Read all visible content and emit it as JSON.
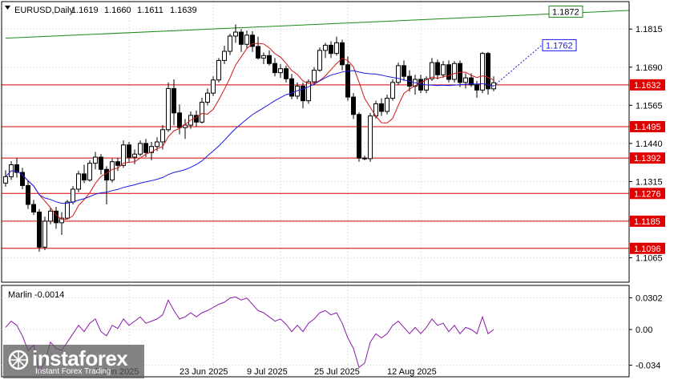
{
  "header": {
    "symbol": "EURUSD,Daily",
    "open": "1.1619",
    "high": "1.1660",
    "low": "1.1611",
    "close": "1.1639"
  },
  "chart_data": {
    "type": "candlestick",
    "price_axis_ticks": [
      1.1815,
      1.169,
      1.1565,
      1.144,
      1.1315,
      1.119,
      1.1065
    ],
    "price_axis_labels": [
      "1.1815",
      "1.1690",
      "1.1565",
      "1.1440",
      "1.1315",
      "1.1190",
      "1.1065"
    ],
    "ylim": [
      1.0985,
      1.1905
    ],
    "date_labels": [
      "5 Jun 2025",
      "23 Jun 2025",
      "9 Jul 2025",
      "25 Jul 2025",
      "12 Aug 2025"
    ],
    "date_label_index": [
      22,
      37,
      49,
      61,
      74
    ],
    "levels": [
      {
        "value": 1.1632,
        "label": "1.1632"
      },
      {
        "value": 1.1495,
        "label": "1.1495"
      },
      {
        "value": 1.1392,
        "label": "1.1392"
      },
      {
        "value": 1.1276,
        "label": "1.1276"
      },
      {
        "value": 1.1185,
        "label": "1.1185"
      },
      {
        "value": 1.1096,
        "label": "1.1096"
      }
    ],
    "green_trendline": {
      "label": "1.1872",
      "start": {
        "index": 0,
        "price": 1.1785
      },
      "end": {
        "index": 96,
        "price": 1.1876
      }
    },
    "blue_ma_label": "1.1762",
    "candles": [
      [
        1.131,
        1.1352,
        1.1298,
        1.1331
      ],
      [
        1.1331,
        1.1382,
        1.132,
        1.137
      ],
      [
        1.137,
        1.1392,
        1.1328,
        1.1345
      ],
      [
        1.1345,
        1.136,
        1.129,
        1.1302
      ],
      [
        1.1302,
        1.1318,
        1.1225,
        1.124
      ],
      [
        1.124,
        1.1255,
        1.1205,
        1.1215
      ],
      [
        1.1215,
        1.1225,
        1.1085,
        1.11
      ],
      [
        1.11,
        1.12,
        1.109,
        1.1185
      ],
      [
        1.1185,
        1.123,
        1.1175,
        1.1218
      ],
      [
        1.1218,
        1.1232,
        1.116,
        1.118
      ],
      [
        1.118,
        1.1215,
        1.114,
        1.1195
      ],
      [
        1.1195,
        1.1255,
        1.119,
        1.1248
      ],
      [
        1.1248,
        1.13,
        1.124,
        1.129
      ],
      [
        1.129,
        1.135,
        1.128,
        1.134
      ],
      [
        1.134,
        1.137,
        1.131,
        1.132
      ],
      [
        1.132,
        1.1385,
        1.1315,
        1.1375
      ],
      [
        1.1375,
        1.1412,
        1.1355,
        1.1395
      ],
      [
        1.1395,
        1.1405,
        1.1338,
        1.1355
      ],
      [
        1.1355,
        1.1365,
        1.124,
        1.132
      ],
      [
        1.132,
        1.139,
        1.1312,
        1.138
      ],
      [
        1.138,
        1.1392,
        1.135,
        1.1368
      ],
      [
        1.1368,
        1.145,
        1.136,
        1.1435
      ],
      [
        1.1435,
        1.1445,
        1.138,
        1.1395
      ],
      [
        1.1395,
        1.142,
        1.1372,
        1.1405
      ],
      [
        1.1405,
        1.145,
        1.1398,
        1.144
      ],
      [
        1.144,
        1.1455,
        1.1395,
        1.141
      ],
      [
        1.141,
        1.1445,
        1.1385,
        1.143
      ],
      [
        1.143,
        1.146,
        1.1415,
        1.1445
      ],
      [
        1.1445,
        1.15,
        1.142,
        1.1485
      ],
      [
        1.1485,
        1.164,
        1.1478,
        1.162
      ],
      [
        1.162,
        1.165,
        1.15,
        1.154
      ],
      [
        1.154,
        1.1568,
        1.147,
        1.1492
      ],
      [
        1.1492,
        1.152,
        1.1455,
        1.15
      ],
      [
        1.15,
        1.1545,
        1.1488,
        1.1532
      ],
      [
        1.1532,
        1.1548,
        1.1495,
        1.151
      ],
      [
        1.151,
        1.159,
        1.1505,
        1.1575
      ],
      [
        1.1575,
        1.162,
        1.1565,
        1.1605
      ],
      [
        1.1605,
        1.166,
        1.1595,
        1.1648
      ],
      [
        1.1648,
        1.172,
        1.164,
        1.1712
      ],
      [
        1.1712,
        1.176,
        1.17,
        1.1742
      ],
      [
        1.1742,
        1.18,
        1.173,
        1.1792
      ],
      [
        1.1792,
        1.183,
        1.177,
        1.1805
      ],
      [
        1.1805,
        1.1815,
        1.174,
        1.1765
      ],
      [
        1.1765,
        1.181,
        1.175,
        1.1795
      ],
      [
        1.1795,
        1.1808,
        1.174,
        1.1758
      ],
      [
        1.1758,
        1.179,
        1.1715,
        1.172
      ],
      [
        1.172,
        1.1738,
        1.17,
        1.1728
      ],
      [
        1.1728,
        1.1745,
        1.1695,
        1.1702
      ],
      [
        1.1702,
        1.172,
        1.166,
        1.1672
      ],
      [
        1.1672,
        1.17,
        1.1655,
        1.1685
      ],
      [
        1.1685,
        1.1695,
        1.164,
        1.1652
      ],
      [
        1.1652,
        1.1668,
        1.1585,
        1.1595
      ],
      [
        1.1595,
        1.164,
        1.1585,
        1.1628
      ],
      [
        1.1628,
        1.164,
        1.1555,
        1.158
      ],
      [
        1.158,
        1.165,
        1.157,
        1.1642
      ],
      [
        1.1642,
        1.169,
        1.163,
        1.168
      ],
      [
        1.168,
        1.1755,
        1.1675,
        1.1745
      ],
      [
        1.1745,
        1.177,
        1.172,
        1.1762
      ],
      [
        1.1762,
        1.1775,
        1.172,
        1.1735
      ],
      [
        1.1735,
        1.179,
        1.1728,
        1.177
      ],
      [
        1.177,
        1.178,
        1.168,
        1.1698
      ],
      [
        1.1698,
        1.1725,
        1.158,
        1.1592
      ],
      [
        1.1592,
        1.1605,
        1.152,
        1.1535
      ],
      [
        1.1535,
        1.1542,
        1.138,
        1.1392
      ],
      [
        1.1392,
        1.14,
        1.1385,
        1.139
      ],
      [
        1.139,
        1.154,
        1.138,
        1.153
      ],
      [
        1.153,
        1.158,
        1.1522,
        1.157
      ],
      [
        1.157,
        1.1588,
        1.153,
        1.1545
      ],
      [
        1.1545,
        1.16,
        1.1535,
        1.1588
      ],
      [
        1.1588,
        1.165,
        1.158,
        1.164
      ],
      [
        1.164,
        1.1705,
        1.1632,
        1.1695
      ],
      [
        1.1695,
        1.1712,
        1.1645,
        1.166
      ],
      [
        1.166,
        1.168,
        1.161,
        1.1628
      ],
      [
        1.1628,
        1.1665,
        1.16,
        1.165
      ],
      [
        1.165,
        1.1665,
        1.1605,
        1.1615
      ],
      [
        1.1615,
        1.166,
        1.1605,
        1.1652
      ],
      [
        1.1652,
        1.172,
        1.1645,
        1.1705
      ],
      [
        1.1705,
        1.1715,
        1.165,
        1.1665
      ],
      [
        1.1665,
        1.171,
        1.1655,
        1.1698
      ],
      [
        1.1698,
        1.1712,
        1.164,
        1.165
      ],
      [
        1.165,
        1.171,
        1.164,
        1.1702
      ],
      [
        1.1702,
        1.1712,
        1.1625,
        1.164
      ],
      [
        1.164,
        1.167,
        1.162,
        1.1655
      ],
      [
        1.1655,
        1.167,
        1.1625,
        1.1632
      ],
      [
        1.1632,
        1.1645,
        1.159,
        1.1615
      ],
      [
        1.1615,
        1.174,
        1.1605,
        1.1735
      ],
      [
        1.1735,
        1.174,
        1.16,
        1.1619
      ],
      [
        1.1619,
        1.166,
        1.1611,
        1.1639
      ]
    ],
    "marlin": {
      "label": "Marlin -0.0014",
      "axis_ticks": [
        0.0302,
        0.0,
        -0.034
      ],
      "axis_labels": [
        "0.0302",
        "0.00",
        "-0.034"
      ],
      "ylim": [
        -0.045,
        0.042
      ],
      "values": [
        0.002,
        0.008,
        0.004,
        -0.006,
        -0.02,
        -0.015,
        -0.04,
        -0.03,
        -0.012,
        -0.018,
        -0.02,
        -0.012,
        -0.004,
        0.004,
        -0.002,
        0.006,
        0.01,
        -0.002,
        -0.006,
        0.004,
        0.001,
        0.01,
        0.004,
        0.008,
        0.012,
        0.006,
        0.008,
        0.01,
        0.014,
        0.028,
        0.018,
        0.01,
        0.012,
        0.016,
        0.012,
        0.016,
        0.018,
        0.021,
        0.024,
        0.026,
        0.03,
        0.031,
        0.028,
        0.03,
        0.024,
        0.018,
        0.016,
        0.012,
        0.008,
        0.01,
        0.005,
        -0.002,
        0.004,
        -0.002,
        0.006,
        0.01,
        0.016,
        0.018,
        0.014,
        0.016,
        0.006,
        -0.008,
        -0.018,
        -0.036,
        -0.032,
        -0.012,
        -0.004,
        -0.008,
        -0.004,
        0.004,
        0.008,
        0.002,
        -0.004,
        0.002,
        -0.004,
        0.002,
        0.01,
        0.004,
        0.006,
        -0.002,
        0.004,
        -0.004,
        0.002,
        0.0,
        -0.004,
        0.012,
        -0.004,
        0.0
      ]
    }
  },
  "watermark": {
    "brand": "instaforex",
    "tagline": "Instant Forex Trading"
  },
  "colors": {
    "background": "#ffffff",
    "grid": "#c8c8c8",
    "level_line": "#d40000",
    "level_label_bg": "#e00000",
    "trend_line": "#1a8a1a",
    "ma_blue": "#1a1ae6",
    "ma_red": "#d01818",
    "marlin": "#8a1aa8",
    "candle_bull": "#ffffff",
    "candle_bear": "#000000"
  }
}
